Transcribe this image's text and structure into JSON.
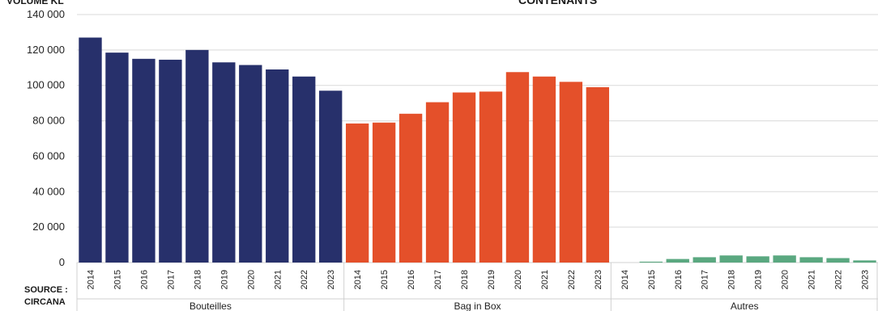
{
  "chart_data": {
    "type": "bar",
    "title": "CONTENANTS",
    "ylabel": "VOLUME KL",
    "ylim": [
      0,
      140000
    ],
    "yticks": [
      "0",
      "20 000",
      "40 000",
      "60 000",
      "80 000",
      "100 000",
      "120 000",
      "140 000"
    ],
    "ytick_values": [
      0,
      20000,
      40000,
      60000,
      80000,
      100000,
      120000,
      140000
    ],
    "grid": true,
    "groups": [
      {
        "name": "Bouteilles",
        "color": "#27306b",
        "categories": [
          "2014",
          "2015",
          "2016",
          "2017",
          "2018",
          "2019",
          "2020",
          "2021",
          "2022",
          "2023"
        ],
        "values": [
          127000,
          118500,
          115000,
          114500,
          120000,
          113000,
          111500,
          109000,
          105000,
          97000
        ]
      },
      {
        "name": "Bag in Box",
        "color": "#e4502a",
        "categories": [
          "2014",
          "2015",
          "2016",
          "2017",
          "2018",
          "2019",
          "2020",
          "2021",
          "2022",
          "2023"
        ],
        "values": [
          78500,
          79000,
          84000,
          90500,
          96000,
          96500,
          107500,
          105000,
          102000,
          99000
        ]
      },
      {
        "name": "Autres",
        "color": "#5aa880",
        "categories": [
          "2014",
          "2015",
          "2016",
          "2017",
          "2018",
          "2019",
          "2020",
          "2021",
          "2022",
          "2023"
        ],
        "values": [
          0,
          500,
          2000,
          3000,
          4000,
          3500,
          4000,
          3000,
          2500,
          1200
        ]
      }
    ]
  },
  "source_label": "SOURCE :",
  "source_value": "CIRCANA"
}
